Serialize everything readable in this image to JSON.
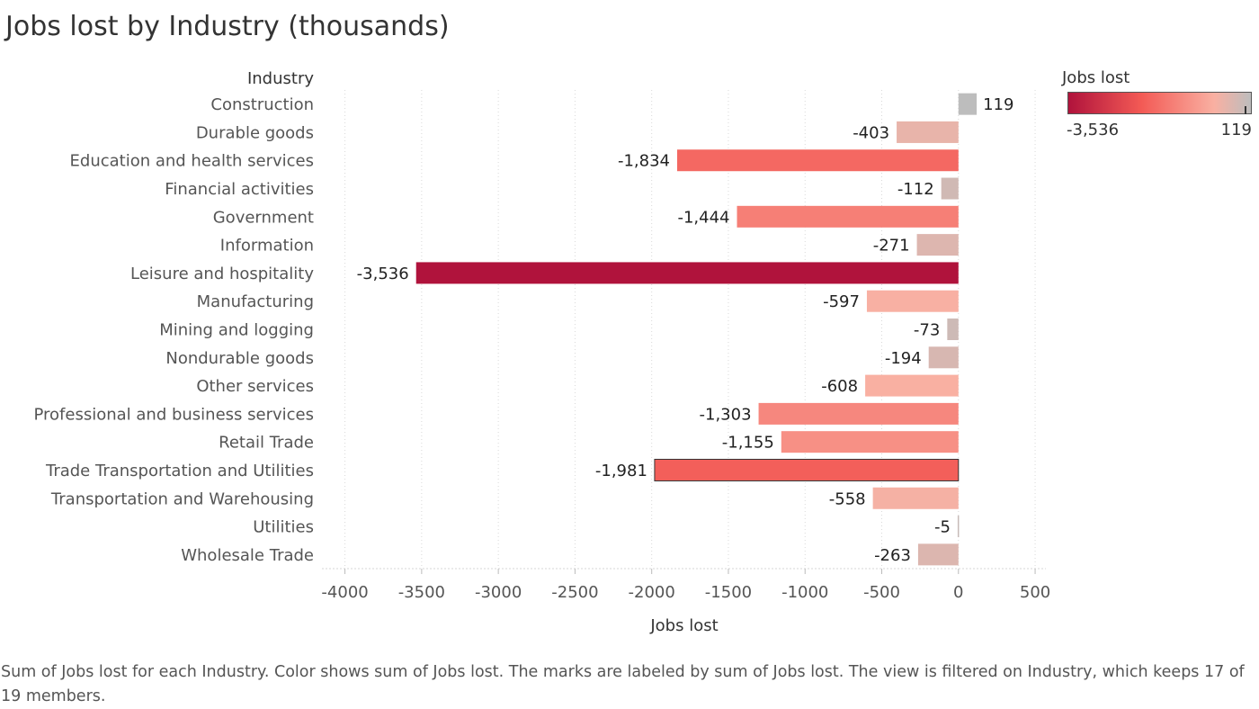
{
  "title": "Jobs lost by Industry (thousands)",
  "legend": {
    "title": "Jobs lost",
    "min_label": "-3,536",
    "max_label": "119",
    "colors": [
      "#b0133c",
      "#f35a55",
      "#f9b0a2",
      "#bdbdbd"
    ]
  },
  "caption": "Sum of Jobs lost for each Industry.  Color shows sum of Jobs lost.  The marks are labeled by sum of Jobs lost. The view is filtered on Industry, which keeps 17 of 19 members.",
  "chart_data": {
    "type": "bar",
    "orientation": "horizontal",
    "row_header": "Industry",
    "xlabel": "Jobs lost",
    "xlim": [
      -4150,
      570
    ],
    "x_ticks": [
      -4000,
      -3500,
      -3000,
      -2500,
      -2000,
      -1500,
      -1000,
      -500,
      0,
      500
    ],
    "grid": true,
    "categories": [
      "Construction",
      "Durable goods",
      "Education and health services",
      "Financial activities",
      "Government",
      "Information",
      "Leisure and hospitality",
      "Manufacturing",
      "Mining and logging",
      "Nondurable goods",
      "Other services",
      "Professional and business services",
      "Retail Trade",
      "Trade Transportation and Utilities",
      "Transportation and Warehousing",
      "Utilities",
      "Wholesale Trade"
    ],
    "values": [
      119,
      -403,
      -1834,
      -112,
      -1444,
      -271,
      -3536,
      -597,
      -73,
      -194,
      -608,
      -1303,
      -1155,
      -1981,
      -558,
      -5,
      -263
    ],
    "value_labels": [
      "119",
      "-403",
      "-1,834",
      "-112",
      "-1,444",
      "-271",
      "-3,536",
      "-597",
      "-73",
      "-194",
      "-608",
      "-1,303",
      "-1,155",
      "-1,981",
      "-558",
      "-5",
      "-263"
    ],
    "highlighted_category": "Trade Transportation and Utilities"
  }
}
